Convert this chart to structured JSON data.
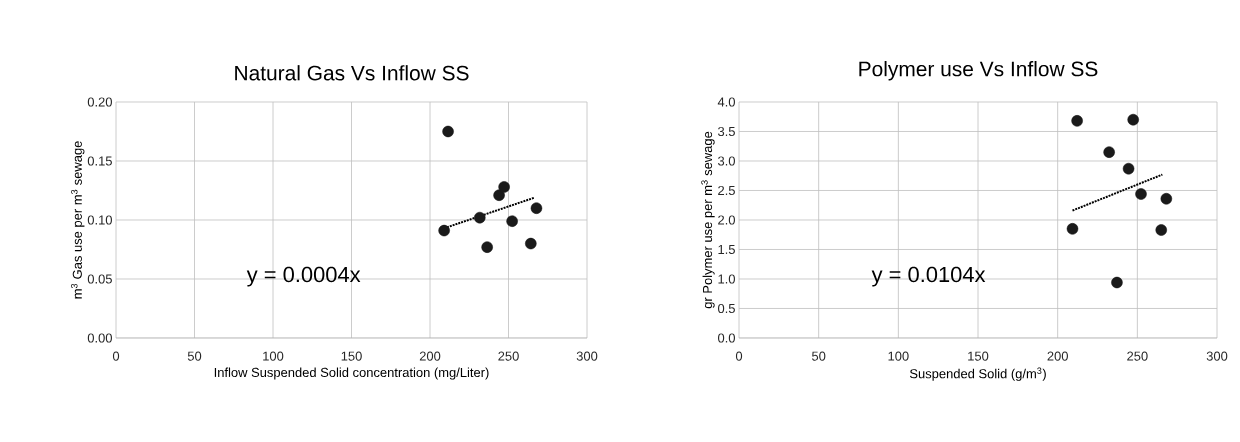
{
  "chart_data": [
    {
      "type": "scatter",
      "title": "Natural Gas Vs Inflow SS",
      "xlabel": "Inflow Suspended Solid concentration (mg/Liter)",
      "ylabel": "m$^{3}$ Gas use per m$^{3}$ sewage",
      "xlim": [
        0,
        300
      ],
      "ylim": [
        0,
        0.2
      ],
      "xticks": [
        0,
        50,
        100,
        150,
        200,
        250,
        300
      ],
      "yticks": [
        {
          "value": 0,
          "label": "0.00"
        },
        {
          "value": 0.05,
          "label": "0.05"
        },
        {
          "value": 0.1,
          "label": "0.10"
        },
        {
          "value": 0.15,
          "label": "0.15"
        },
        {
          "value": 0.2,
          "label": "0.20"
        }
      ],
      "grid": true,
      "annotations": [
        "y = 0.0004x"
      ],
      "series": [
        {
          "type": "scatter",
          "marker": "circle",
          "color": "#1a1a1a",
          "x": [
            211.5,
            209,
            231.7,
            236.4,
            244,
            247.2,
            252.3,
            264.2,
            267.8
          ],
          "values": [
            0.175,
            0.091,
            0.102,
            0.077,
            0.121,
            0.128,
            0.099,
            0.08,
            0.11
          ]
        },
        {
          "type": "line",
          "color": "#000000",
          "line_style": "dotted",
          "marker": "none",
          "x": [
            209,
            266.7
          ],
          "values": [
            0.093,
            0.119
          ]
        }
      ]
    },
    {
      "type": "scatter",
      "title": "Polymer use Vs Inflow SS",
      "xlabel": "Suspended Solid (g/m$^{3}$)",
      "ylabel": "gr Polymer use per m$^{3}$ sewage",
      "xlim": [
        0,
        300
      ],
      "ylim": [
        0,
        4
      ],
      "xticks": [
        0,
        50,
        100,
        150,
        200,
        250,
        300
      ],
      "yticks": [
        {
          "value": 0,
          "label": "0.0"
        },
        {
          "value": 0.5,
          "label": "0.5"
        },
        {
          "value": 1,
          "label": "1.0"
        },
        {
          "value": 1.5,
          "label": "1.5"
        },
        {
          "value": 2,
          "label": "2.0"
        },
        {
          "value": 2.5,
          "label": "2.5"
        },
        {
          "value": 3,
          "label": "3.0"
        },
        {
          "value": 3.5,
          "label": "3.5"
        },
        {
          "value": 4,
          "label": "4.0"
        }
      ],
      "grid": true,
      "annotations": [
        "y = 0.0104x"
      ],
      "series": [
        {
          "type": "scatter",
          "marker": "circle",
          "color": "#1a1a1a",
          "x": [
            212.2,
            247.4,
            232.3,
            244.5,
            252.3,
            268.2,
            209.3,
            265.0,
            237.2
          ],
          "values": [
            3.68,
            3.7,
            3.15,
            2.87,
            2.44,
            2.36,
            1.85,
            1.83,
            0.94
          ]
        },
        {
          "type": "line",
          "color": "#000000",
          "line_style": "dotted",
          "marker": "none",
          "x": [
            209.3,
            265.7
          ],
          "values": [
            2.16,
            2.77
          ]
        }
      ]
    }
  ]
}
